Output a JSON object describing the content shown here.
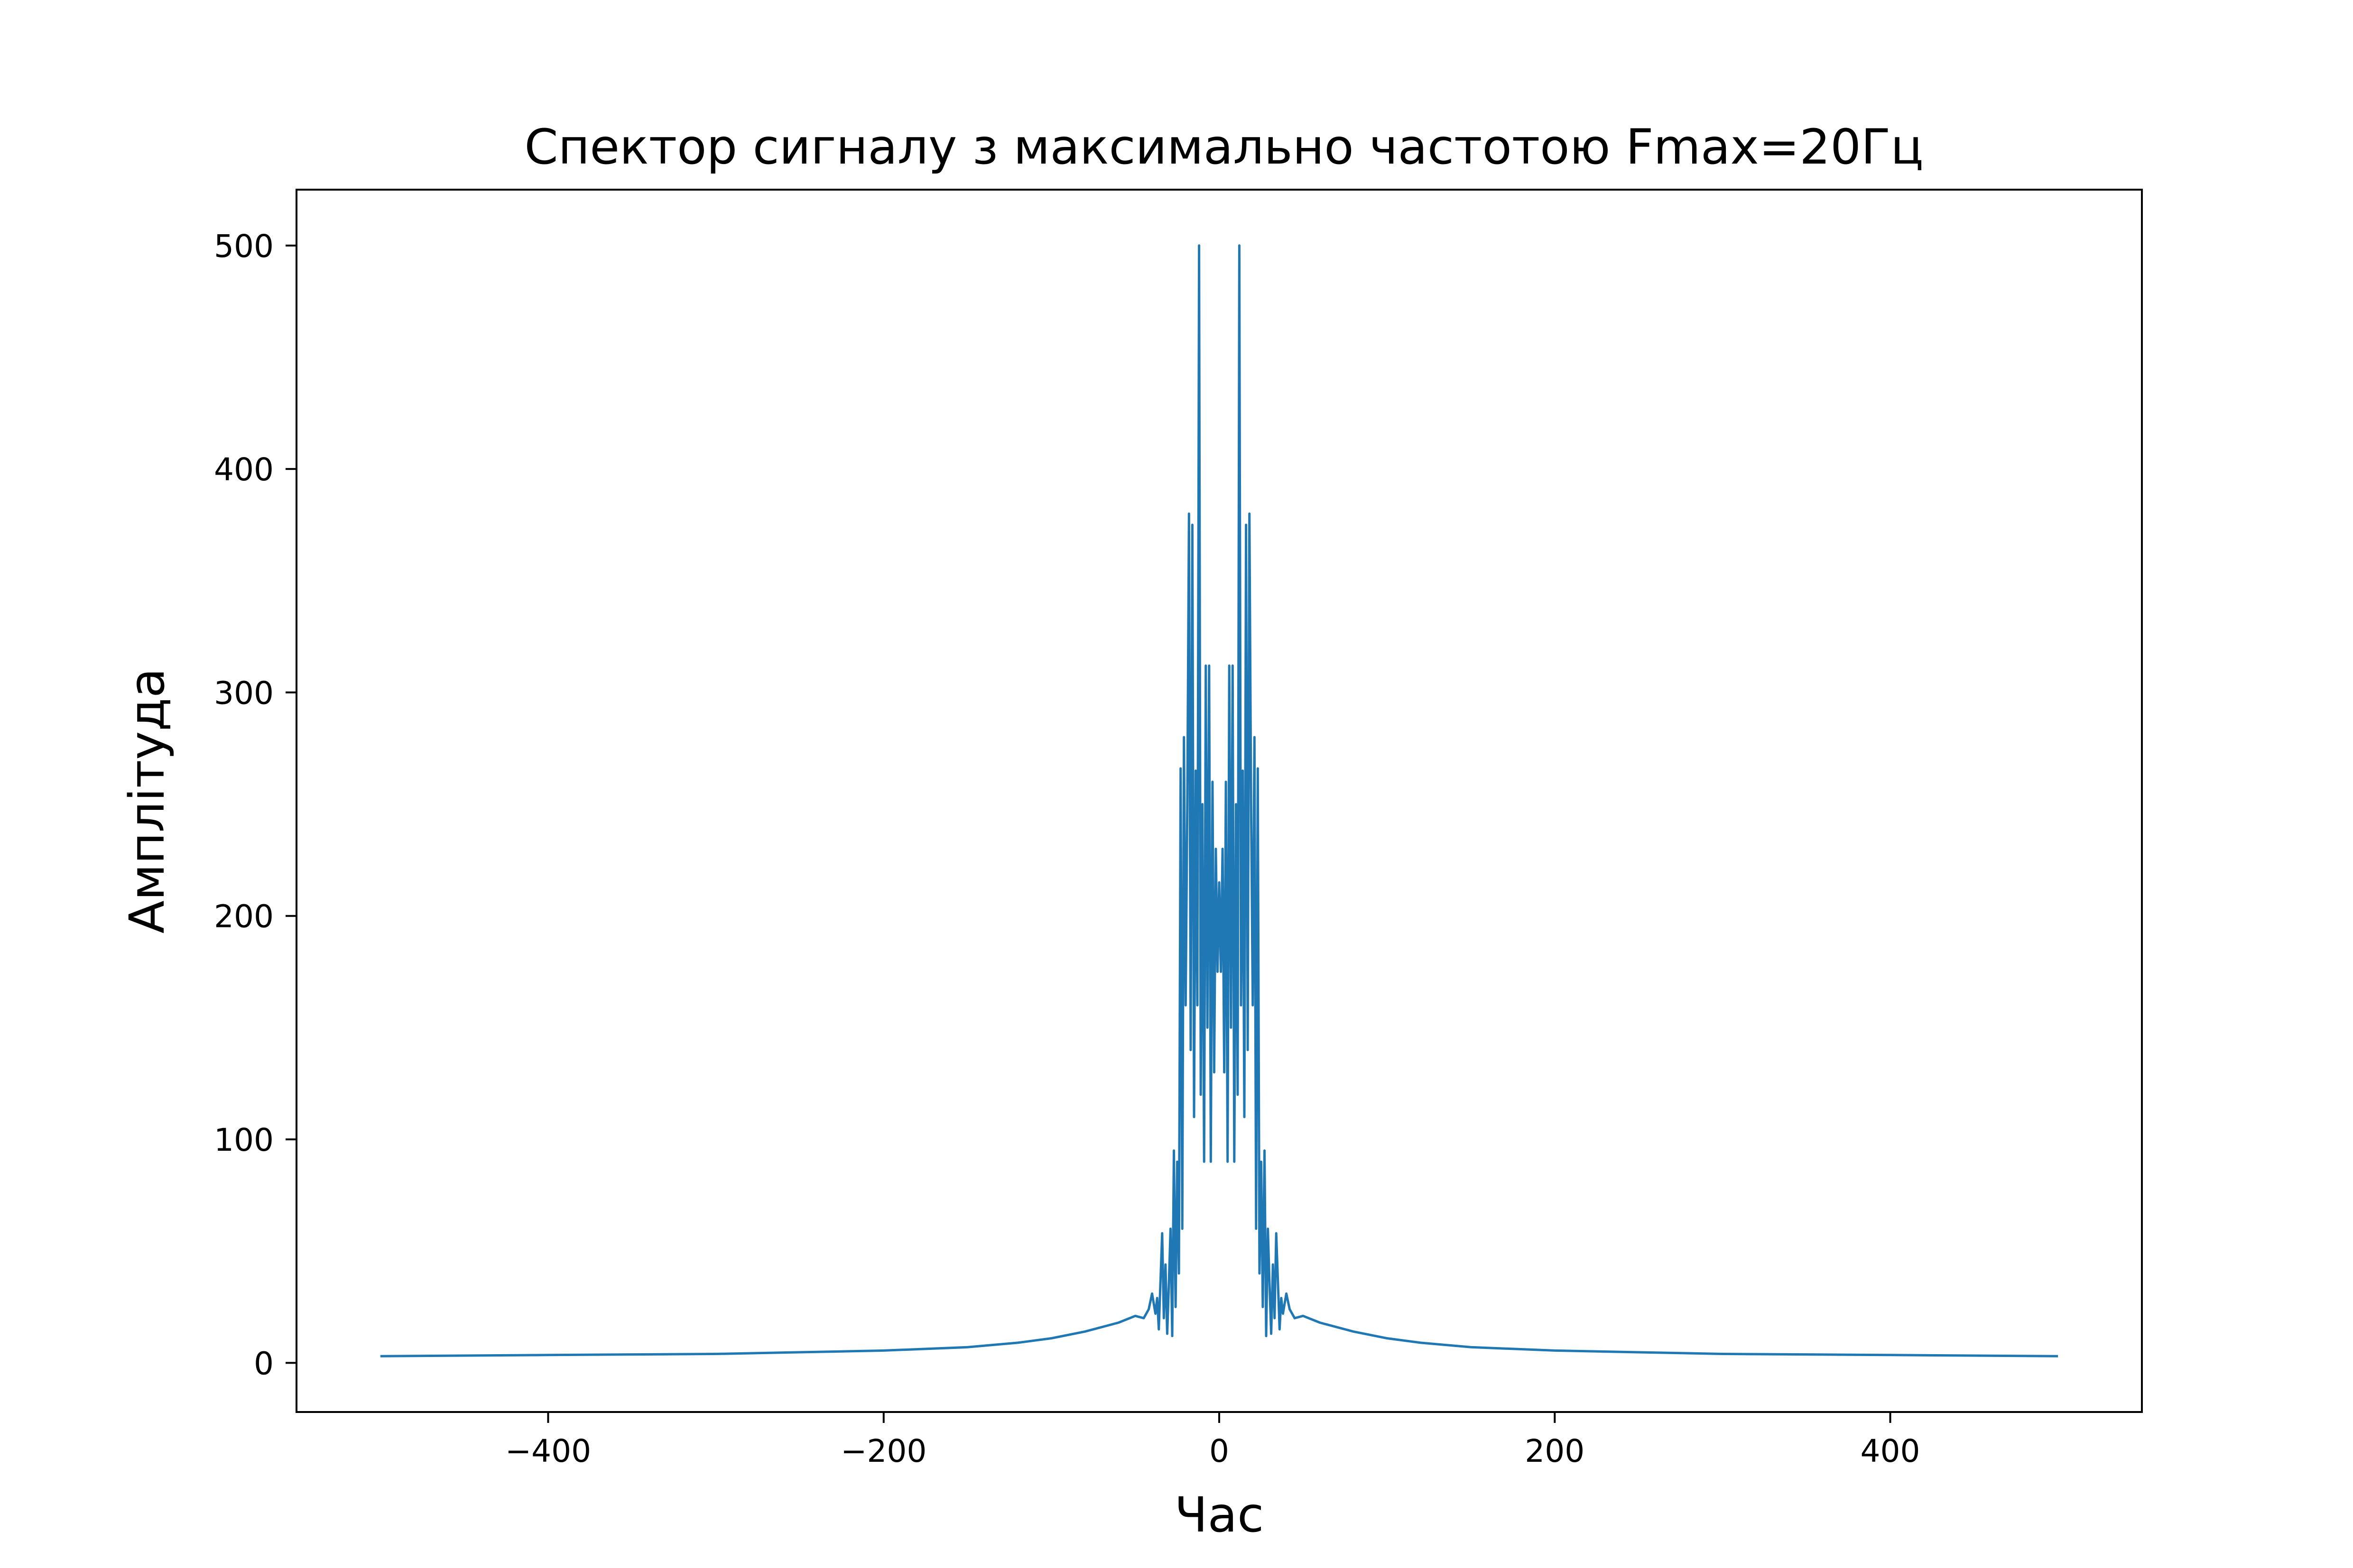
{
  "chart_data": {
    "type": "line",
    "title": "Спектор сигналу з максимально частотою Fmax=20Гц",
    "xlabel": "Час",
    "ylabel": "Амплітуда",
    "xlim": [
      -550,
      550
    ],
    "ylim": [
      -22,
      525
    ],
    "xticks": [
      -400,
      -200,
      0,
      200,
      400
    ],
    "xtick_labels": [
      "−400",
      "−200",
      "0",
      "200",
      "400"
    ],
    "yticks": [
      0,
      100,
      200,
      300,
      400,
      500
    ],
    "ytick_labels": [
      "0",
      "100",
      "200",
      "300",
      "400",
      "500"
    ],
    "grid": false,
    "legend": "none",
    "series": [
      {
        "color": "#1f77b4",
        "x": [
          -500,
          -400,
          -300,
          -200,
          -150,
          -120,
          -100,
          -80,
          -60,
          -50,
          -45,
          -42,
          -40,
          -38,
          -37,
          -36,
          -34,
          -33,
          -32,
          -31,
          -30,
          -29,
          -28,
          -27,
          -26,
          -25,
          -24,
          -23,
          -22,
          -21,
          -20,
          -19,
          -18,
          -17,
          -16,
          -15,
          -14,
          -13,
          -12,
          -11,
          -10,
          -9,
          -8,
          -7,
          -6,
          -5,
          -4,
          -3,
          -2,
          -1,
          0,
          1,
          2,
          3,
          4,
          5,
          6,
          7,
          8,
          9,
          10,
          11,
          12,
          13,
          14,
          15,
          16,
          17,
          18,
          19,
          20,
          21,
          22,
          23,
          24,
          25,
          26,
          27,
          28,
          29,
          30,
          31,
          32,
          33,
          34,
          36,
          37,
          38,
          40,
          42,
          45,
          50,
          60,
          80,
          100,
          120,
          150,
          200,
          300,
          400,
          500
        ],
        "y": [
          3,
          3.5,
          4,
          5.5,
          7,
          9,
          11,
          14,
          18,
          21,
          20,
          24,
          31,
          22,
          29,
          15,
          58,
          20,
          44,
          13,
          35,
          60,
          12,
          95,
          25,
          90,
          40,
          266,
          60,
          280,
          160,
          250,
          380,
          140,
          375,
          110,
          265,
          160,
          500,
          120,
          250,
          90,
          312,
          150,
          312,
          90,
          260,
          130,
          230,
          175,
          215,
          175,
          230,
          130,
          260,
          90,
          312,
          150,
          312,
          90,
          250,
          120,
          500,
          160,
          265,
          110,
          375,
          140,
          380,
          250,
          160,
          280,
          60,
          266,
          40,
          90,
          25,
          95,
          12,
          60,
          35,
          13,
          44,
          20,
          58,
          15,
          29,
          22,
          31,
          24,
          20,
          21,
          18,
          14,
          11,
          9,
          7,
          5.5,
          4,
          3.5,
          3
        ]
      }
    ]
  }
}
